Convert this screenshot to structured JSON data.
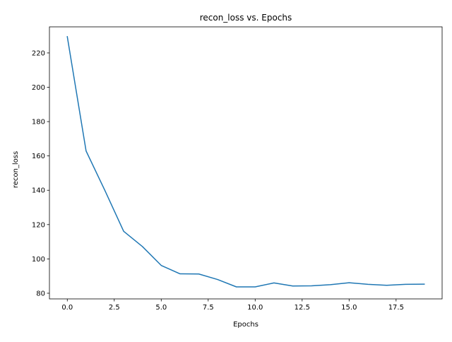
{
  "chart_data": {
    "type": "line",
    "title": "recon_loss vs. Epochs",
    "xlabel": "Epochs",
    "ylabel": "recon_loss",
    "xlim": [
      -0.95,
      19.95
    ],
    "ylim": [
      76.7,
      235.2
    ],
    "x_ticks": [
      0.0,
      2.5,
      5.0,
      7.5,
      10.0,
      12.5,
      15.0,
      17.5
    ],
    "x_tick_labels": [
      "0.0",
      "2.5",
      "5.0",
      "7.5",
      "10.0",
      "12.5",
      "15.0",
      "17.5"
    ],
    "y_ticks": [
      80,
      100,
      120,
      140,
      160,
      180,
      200,
      220
    ],
    "y_tick_labels": [
      "80",
      "100",
      "120",
      "140",
      "160",
      "180",
      "200",
      "220"
    ],
    "grid": false,
    "legend": "none",
    "series": [
      {
        "color": "#1f77b4",
        "x": [
          0,
          1,
          2,
          3,
          4,
          5,
          6,
          7,
          8,
          9,
          10,
          11,
          12,
          13,
          14,
          15,
          16,
          17,
          18,
          19
        ],
        "y": [
          229.5,
          162.9,
          139.9,
          116.1,
          107.2,
          96.2,
          91.3,
          91.2,
          88.0,
          83.7,
          83.7,
          86.0,
          84.2,
          84.3,
          85.0,
          86.1,
          85.2,
          84.6,
          85.2,
          85.3
        ]
      }
    ]
  }
}
